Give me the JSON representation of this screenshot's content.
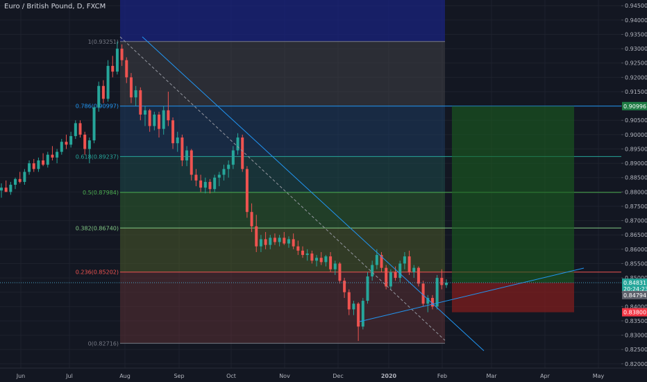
{
  "header": {
    "title": "Euro / British Pound, D, FXCM"
  },
  "colors": {
    "background": "#131722",
    "grid": "#1e222d",
    "up": "#26a69a",
    "down": "#ef5350",
    "trendline": "#2196f3",
    "price_line": "#4ba3c7",
    "fib_1": "#787b86",
    "fib_786": "#2196f3",
    "fib_618": "#26a69a",
    "fib_5": "#4caf50",
    "fib_382": "#81c784",
    "fib_236": "#ef5350",
    "fib_0": "#787b86",
    "target_zone": "#1b5e20",
    "stop_zone": "#7f1d1d"
  },
  "chart_data": {
    "type": "candlestick",
    "symbol": "Euro / British Pound",
    "interval": "D",
    "source": "FXCM",
    "x_ticks": [
      "Jun",
      "Jul",
      "Aug",
      "Sep",
      "Oct",
      "Nov",
      "Dec",
      "2020",
      "Feb",
      "Mar",
      "Apr",
      "May"
    ],
    "y_ticks": [
      "0.94500",
      "0.94000",
      "0.93500",
      "0.93000",
      "0.92500",
      "0.92000",
      "0.91500",
      "0.91000",
      "0.90500",
      "0.90000",
      "0.89500",
      "0.89000",
      "0.88500",
      "0.88000",
      "0.87500",
      "0.87000",
      "0.86500",
      "0.86000",
      "0.85500",
      "0.85000",
      "0.84500",
      "0.84000",
      "0.83500",
      "0.83000",
      "0.82500",
      "0.82000"
    ],
    "ylim": [
      0.8185,
      0.947
    ],
    "price_markers": [
      {
        "label": "0.90996",
        "value": 0.90996,
        "role": "target"
      },
      {
        "label": "0.84831",
        "value": 0.84831,
        "role": "last-price"
      },
      {
        "label": "20:24:23",
        "value": 0.84615,
        "role": "countdown"
      },
      {
        "label": "0.84794",
        "value": 0.844,
        "role": "entry"
      },
      {
        "label": "0.83800",
        "value": 0.838,
        "role": "stop"
      }
    ],
    "fib_levels": [
      {
        "label": "1(0.93251)",
        "ratio": 1,
        "value": 0.93251
      },
      {
        "label": "0.786(0.90997)",
        "ratio": 0.786,
        "value": 0.90997
      },
      {
        "label": "0.618(0.89237)",
        "ratio": 0.618,
        "value": 0.89237
      },
      {
        "label": "0.5(0.87984)",
        "ratio": 0.5,
        "value": 0.87984
      },
      {
        "label": "0.382(0.86740)",
        "ratio": 0.382,
        "value": 0.8674
      },
      {
        "label": "0.236(0.85202)",
        "ratio": 0.236,
        "value": 0.85202
      },
      {
        "label": "0(0.82716)",
        "ratio": 0,
        "value": 0.82716
      }
    ],
    "candles": [
      {
        "o": 0.8805,
        "h": 0.883,
        "l": 0.878,
        "c": 0.8815
      },
      {
        "o": 0.8815,
        "h": 0.884,
        "l": 0.88,
        "c": 0.88
      },
      {
        "o": 0.88,
        "h": 0.8835,
        "l": 0.879,
        "c": 0.8825
      },
      {
        "o": 0.8825,
        "h": 0.885,
        "l": 0.881,
        "c": 0.8845
      },
      {
        "o": 0.8845,
        "h": 0.887,
        "l": 0.883,
        "c": 0.8835
      },
      {
        "o": 0.8835,
        "h": 0.888,
        "l": 0.8825,
        "c": 0.887
      },
      {
        "o": 0.887,
        "h": 0.891,
        "l": 0.886,
        "c": 0.89
      },
      {
        "o": 0.89,
        "h": 0.8915,
        "l": 0.887,
        "c": 0.888
      },
      {
        "o": 0.888,
        "h": 0.892,
        "l": 0.887,
        "c": 0.891
      },
      {
        "o": 0.891,
        "h": 0.8935,
        "l": 0.889,
        "c": 0.8895
      },
      {
        "o": 0.8895,
        "h": 0.894,
        "l": 0.8885,
        "c": 0.893
      },
      {
        "o": 0.893,
        "h": 0.896,
        "l": 0.891,
        "c": 0.892
      },
      {
        "o": 0.892,
        "h": 0.895,
        "l": 0.89,
        "c": 0.894
      },
      {
        "o": 0.894,
        "h": 0.8985,
        "l": 0.893,
        "c": 0.8975
      },
      {
        "o": 0.8975,
        "h": 0.9,
        "l": 0.895,
        "c": 0.8965
      },
      {
        "o": 0.8965,
        "h": 0.901,
        "l": 0.8955,
        "c": 0.8995
      },
      {
        "o": 0.8995,
        "h": 0.905,
        "l": 0.8985,
        "c": 0.904
      },
      {
        "o": 0.904,
        "h": 0.905,
        "l": 0.899,
        "c": 0.9
      },
      {
        "o": 0.9,
        "h": 0.901,
        "l": 0.893,
        "c": 0.895
      },
      {
        "o": 0.895,
        "h": 0.899,
        "l": 0.89,
        "c": 0.898
      },
      {
        "o": 0.898,
        "h": 0.91,
        "l": 0.897,
        "c": 0.9095
      },
      {
        "o": 0.9095,
        "h": 0.9185,
        "l": 0.908,
        "c": 0.917
      },
      {
        "o": 0.917,
        "h": 0.919,
        "l": 0.911,
        "c": 0.9125
      },
      {
        "o": 0.9125,
        "h": 0.926,
        "l": 0.9115,
        "c": 0.924
      },
      {
        "o": 0.924,
        "h": 0.9275,
        "l": 0.92,
        "c": 0.922
      },
      {
        "o": 0.922,
        "h": 0.9325,
        "l": 0.921,
        "c": 0.93
      },
      {
        "o": 0.93,
        "h": 0.9315,
        "l": 0.924,
        "c": 0.926
      },
      {
        "o": 0.926,
        "h": 0.927,
        "l": 0.918,
        "c": 0.92
      },
      {
        "o": 0.92,
        "h": 0.9215,
        "l": 0.911,
        "c": 0.913
      },
      {
        "o": 0.913,
        "h": 0.917,
        "l": 0.91,
        "c": 0.9155
      },
      {
        "o": 0.9155,
        "h": 0.9165,
        "l": 0.905,
        "c": 0.907
      },
      {
        "o": 0.907,
        "h": 0.91,
        "l": 0.903,
        "c": 0.9085
      },
      {
        "o": 0.9085,
        "h": 0.909,
        "l": 0.901,
        "c": 0.903
      },
      {
        "o": 0.903,
        "h": 0.908,
        "l": 0.9015,
        "c": 0.907
      },
      {
        "o": 0.907,
        "h": 0.908,
        "l": 0.899,
        "c": 0.902
      },
      {
        "o": 0.902,
        "h": 0.91,
        "l": 0.9,
        "c": 0.9085
      },
      {
        "o": 0.9085,
        "h": 0.915,
        "l": 0.903,
        "c": 0.905
      },
      {
        "o": 0.905,
        "h": 0.906,
        "l": 0.895,
        "c": 0.897
      },
      {
        "o": 0.897,
        "h": 0.901,
        "l": 0.894,
        "c": 0.899
      },
      {
        "o": 0.899,
        "h": 0.9,
        "l": 0.889,
        "c": 0.891
      },
      {
        "o": 0.891,
        "h": 0.896,
        "l": 0.889,
        "c": 0.8945
      },
      {
        "o": 0.8945,
        "h": 0.895,
        "l": 0.884,
        "c": 0.886
      },
      {
        "o": 0.886,
        "h": 0.888,
        "l": 0.882,
        "c": 0.884
      },
      {
        "o": 0.884,
        "h": 0.886,
        "l": 0.88,
        "c": 0.8815
      },
      {
        "o": 0.8815,
        "h": 0.885,
        "l": 0.8795,
        "c": 0.8835
      },
      {
        "o": 0.8835,
        "h": 0.8845,
        "l": 0.8795,
        "c": 0.881
      },
      {
        "o": 0.881,
        "h": 0.886,
        "l": 0.88,
        "c": 0.885
      },
      {
        "o": 0.885,
        "h": 0.887,
        "l": 0.882,
        "c": 0.886
      },
      {
        "o": 0.886,
        "h": 0.8895,
        "l": 0.884,
        "c": 0.888
      },
      {
        "o": 0.888,
        "h": 0.891,
        "l": 0.885,
        "c": 0.8895
      },
      {
        "o": 0.8895,
        "h": 0.896,
        "l": 0.888,
        "c": 0.8945
      },
      {
        "o": 0.8945,
        "h": 0.9005,
        "l": 0.893,
        "c": 0.899
      },
      {
        "o": 0.899,
        "h": 0.9,
        "l": 0.887,
        "c": 0.888
      },
      {
        "o": 0.888,
        "h": 0.889,
        "l": 0.871,
        "c": 0.873
      },
      {
        "o": 0.873,
        "h": 0.876,
        "l": 0.866,
        "c": 0.868
      },
      {
        "o": 0.868,
        "h": 0.872,
        "l": 0.859,
        "c": 0.861
      },
      {
        "o": 0.861,
        "h": 0.865,
        "l": 0.859,
        "c": 0.8635
      },
      {
        "o": 0.8635,
        "h": 0.866,
        "l": 0.86,
        "c": 0.8615
      },
      {
        "o": 0.8615,
        "h": 0.865,
        "l": 0.86,
        "c": 0.864
      },
      {
        "o": 0.864,
        "h": 0.8655,
        "l": 0.8615,
        "c": 0.8625
      },
      {
        "o": 0.8625,
        "h": 0.865,
        "l": 0.861,
        "c": 0.864
      },
      {
        "o": 0.864,
        "h": 0.866,
        "l": 0.8615,
        "c": 0.862
      },
      {
        "o": 0.862,
        "h": 0.8645,
        "l": 0.8605,
        "c": 0.8635
      },
      {
        "o": 0.8635,
        "h": 0.8655,
        "l": 0.86,
        "c": 0.861
      },
      {
        "o": 0.861,
        "h": 0.863,
        "l": 0.858,
        "c": 0.8595
      },
      {
        "o": 0.8595,
        "h": 0.861,
        "l": 0.857,
        "c": 0.858
      },
      {
        "o": 0.858,
        "h": 0.86,
        "l": 0.856,
        "c": 0.8585
      },
      {
        "o": 0.8585,
        "h": 0.8595,
        "l": 0.855,
        "c": 0.856
      },
      {
        "o": 0.856,
        "h": 0.858,
        "l": 0.854,
        "c": 0.857
      },
      {
        "o": 0.857,
        "h": 0.859,
        "l": 0.8545,
        "c": 0.8555
      },
      {
        "o": 0.8555,
        "h": 0.858,
        "l": 0.854,
        "c": 0.8575
      },
      {
        "o": 0.8575,
        "h": 0.859,
        "l": 0.852,
        "c": 0.853
      },
      {
        "o": 0.853,
        "h": 0.856,
        "l": 0.851,
        "c": 0.855
      },
      {
        "o": 0.855,
        "h": 0.8555,
        "l": 0.848,
        "c": 0.849
      },
      {
        "o": 0.849,
        "h": 0.85,
        "l": 0.843,
        "c": 0.845
      },
      {
        "o": 0.845,
        "h": 0.846,
        "l": 0.837,
        "c": 0.839
      },
      {
        "o": 0.839,
        "h": 0.842,
        "l": 0.837,
        "c": 0.841
      },
      {
        "o": 0.841,
        "h": 0.8415,
        "l": 0.828,
        "c": 0.833
      },
      {
        "o": 0.833,
        "h": 0.843,
        "l": 0.832,
        "c": 0.842
      },
      {
        "o": 0.842,
        "h": 0.852,
        "l": 0.841,
        "c": 0.8505
      },
      {
        "o": 0.8505,
        "h": 0.856,
        "l": 0.849,
        "c": 0.8545
      },
      {
        "o": 0.8545,
        "h": 0.86,
        "l": 0.853,
        "c": 0.858
      },
      {
        "o": 0.858,
        "h": 0.859,
        "l": 0.852,
        "c": 0.8535
      },
      {
        "o": 0.8535,
        "h": 0.8545,
        "l": 0.846,
        "c": 0.847
      },
      {
        "o": 0.847,
        "h": 0.853,
        "l": 0.846,
        "c": 0.852
      },
      {
        "o": 0.852,
        "h": 0.854,
        "l": 0.849,
        "c": 0.85
      },
      {
        "o": 0.85,
        "h": 0.856,
        "l": 0.8485,
        "c": 0.855
      },
      {
        "o": 0.855,
        "h": 0.859,
        "l": 0.853,
        "c": 0.8575
      },
      {
        "o": 0.8575,
        "h": 0.8595,
        "l": 0.851,
        "c": 0.852
      },
      {
        "o": 0.852,
        "h": 0.8545,
        "l": 0.85,
        "c": 0.8535
      },
      {
        "o": 0.8535,
        "h": 0.854,
        "l": 0.847,
        "c": 0.848
      },
      {
        "o": 0.848,
        "h": 0.849,
        "l": 0.84,
        "c": 0.841
      },
      {
        "o": 0.841,
        "h": 0.844,
        "l": 0.838,
        "c": 0.843
      },
      {
        "o": 0.843,
        "h": 0.844,
        "l": 0.839,
        "c": 0.84
      },
      {
        "o": 0.84,
        "h": 0.851,
        "l": 0.839,
        "c": 0.85
      },
      {
        "o": 0.85,
        "h": 0.853,
        "l": 0.846,
        "c": 0.8475
      },
      {
        "o": 0.8475,
        "h": 0.8495,
        "l": 0.8465,
        "c": 0.8483
      }
    ]
  }
}
